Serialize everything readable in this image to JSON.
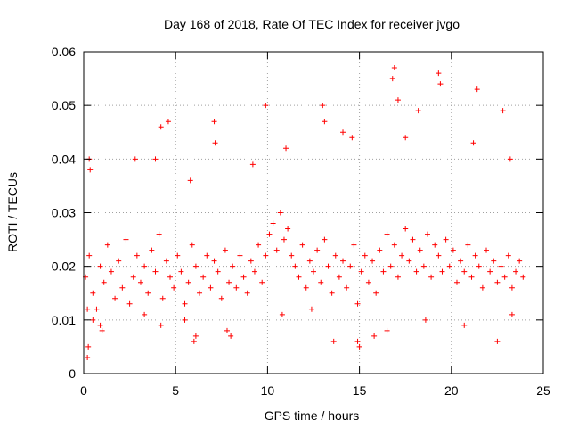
{
  "chart_data": {
    "type": "scatter",
    "title": "Day 168 of 2018, Rate Of TEC Index for receiver jvgo",
    "xlabel": "GPS time / hours",
    "ylabel": "ROTI / TECUs",
    "xlim": [
      0,
      25
    ],
    "ylim": [
      0,
      0.06
    ],
    "xticks": [
      0,
      5,
      10,
      15,
      20,
      25
    ],
    "yticks": [
      0,
      0.01,
      0.02,
      0.03,
      0.04,
      0.05,
      0.06
    ],
    "xtick_labels": [
      "0",
      "5",
      "10",
      "15",
      "20",
      "25"
    ],
    "ytick_labels": [
      "0",
      "0.01",
      "0.02",
      "0.03",
      "0.04",
      "0.05",
      "0.06"
    ],
    "grid": true,
    "marker": "+",
    "series": [
      {
        "name": "ROTI",
        "color": "#ff0000",
        "x": [
          0.1,
          0.3,
          0.5,
          0.7,
          0.9,
          1.1,
          1.3,
          1.5,
          1.7,
          1.9,
          2.1,
          2.3,
          2.5,
          2.7,
          2.9,
          3.1,
          3.3,
          3.5,
          3.7,
          3.9,
          4.1,
          4.3,
          4.5,
          4.7,
          4.9,
          5.1,
          5.3,
          5.5,
          5.7,
          5.9,
          6.1,
          6.3,
          6.5,
          6.7,
          6.9,
          7.1,
          7.3,
          7.5,
          7.7,
          7.9,
          8.1,
          8.3,
          8.5,
          8.7,
          8.9,
          9.1,
          9.3,
          9.5,
          9.7,
          9.9,
          10.1,
          10.3,
          10.5,
          10.7,
          10.9,
          11.1,
          11.3,
          11.5,
          11.7,
          11.9,
          12.1,
          12.3,
          12.5,
          12.7,
          12.9,
          13.1,
          13.3,
          13.5,
          13.7,
          13.9,
          14.1,
          14.3,
          14.5,
          14.7,
          14.9,
          15.1,
          15.3,
          15.5,
          15.7,
          15.9,
          16.1,
          16.3,
          16.5,
          16.7,
          16.9,
          17.1,
          17.3,
          17.5,
          17.7,
          17.9,
          18.1,
          18.3,
          18.5,
          18.7,
          18.9,
          19.1,
          19.3,
          19.5,
          19.7,
          19.9,
          20.1,
          20.3,
          20.5,
          20.7,
          20.9,
          21.1,
          21.3,
          21.5,
          21.7,
          21.9,
          22.1,
          22.3,
          22.5,
          22.7,
          22.9,
          23.1,
          23.3,
          23.5,
          23.7,
          23.9,
          0.2,
          0.25,
          4.2,
          4.6,
          7.1,
          7.15,
          9.9,
          11.0,
          13.0,
          13.1,
          16.8,
          16.9,
          17.1,
          18.2,
          19.3,
          19.4,
          21.4,
          21.2,
          0.3,
          0.35,
          2.8,
          3.9,
          5.8,
          9.2,
          14.1,
          14.6,
          17.5,
          22.8,
          23.2,
          15.0,
          14.9,
          0.5,
          1.0,
          6.0,
          6.1,
          4.2,
          8.0,
          13.6,
          16.5,
          22.5,
          0.2,
          0.9,
          3.3,
          5.5,
          7.8,
          10.8,
          12.4,
          15.8,
          18.6,
          20.7,
          23.3
        ],
        "y": [
          0.018,
          0.022,
          0.015,
          0.012,
          0.02,
          0.017,
          0.024,
          0.019,
          0.014,
          0.021,
          0.016,
          0.025,
          0.013,
          0.018,
          0.022,
          0.017,
          0.02,
          0.015,
          0.023,
          0.019,
          0.026,
          0.014,
          0.021,
          0.018,
          0.016,
          0.022,
          0.019,
          0.013,
          0.017,
          0.024,
          0.02,
          0.015,
          0.018,
          0.022,
          0.016,
          0.021,
          0.019,
          0.014,
          0.023,
          0.017,
          0.02,
          0.016,
          0.022,
          0.018,
          0.015,
          0.021,
          0.019,
          0.024,
          0.017,
          0.022,
          0.026,
          0.028,
          0.023,
          0.03,
          0.025,
          0.027,
          0.022,
          0.02,
          0.018,
          0.024,
          0.016,
          0.021,
          0.019,
          0.023,
          0.017,
          0.025,
          0.02,
          0.015,
          0.022,
          0.018,
          0.021,
          0.016,
          0.02,
          0.024,
          0.013,
          0.019,
          0.022,
          0.017,
          0.021,
          0.015,
          0.023,
          0.019,
          0.026,
          0.02,
          0.024,
          0.018,
          0.022,
          0.027,
          0.021,
          0.025,
          0.019,
          0.023,
          0.02,
          0.026,
          0.018,
          0.024,
          0.022,
          0.019,
          0.025,
          0.02,
          0.023,
          0.017,
          0.021,
          0.019,
          0.024,
          0.018,
          0.022,
          0.02,
          0.016,
          0.023,
          0.019,
          0.021,
          0.017,
          0.02,
          0.018,
          0.022,
          0.016,
          0.019,
          0.021,
          0.018,
          0.003,
          0.005,
          0.046,
          0.047,
          0.047,
          0.043,
          0.05,
          0.042,
          0.05,
          0.047,
          0.055,
          0.057,
          0.051,
          0.049,
          0.056,
          0.054,
          0.053,
          0.043,
          0.04,
          0.038,
          0.04,
          0.04,
          0.036,
          0.039,
          0.045,
          0.044,
          0.044,
          0.049,
          0.04,
          0.005,
          0.006,
          0.01,
          0.008,
          0.006,
          0.007,
          0.009,
          0.007,
          0.006,
          0.008,
          0.006,
          0.012,
          0.009,
          0.011,
          0.01,
          0.008,
          0.011,
          0.012,
          0.007,
          0.01,
          0.009,
          0.011
        ]
      }
    ]
  }
}
